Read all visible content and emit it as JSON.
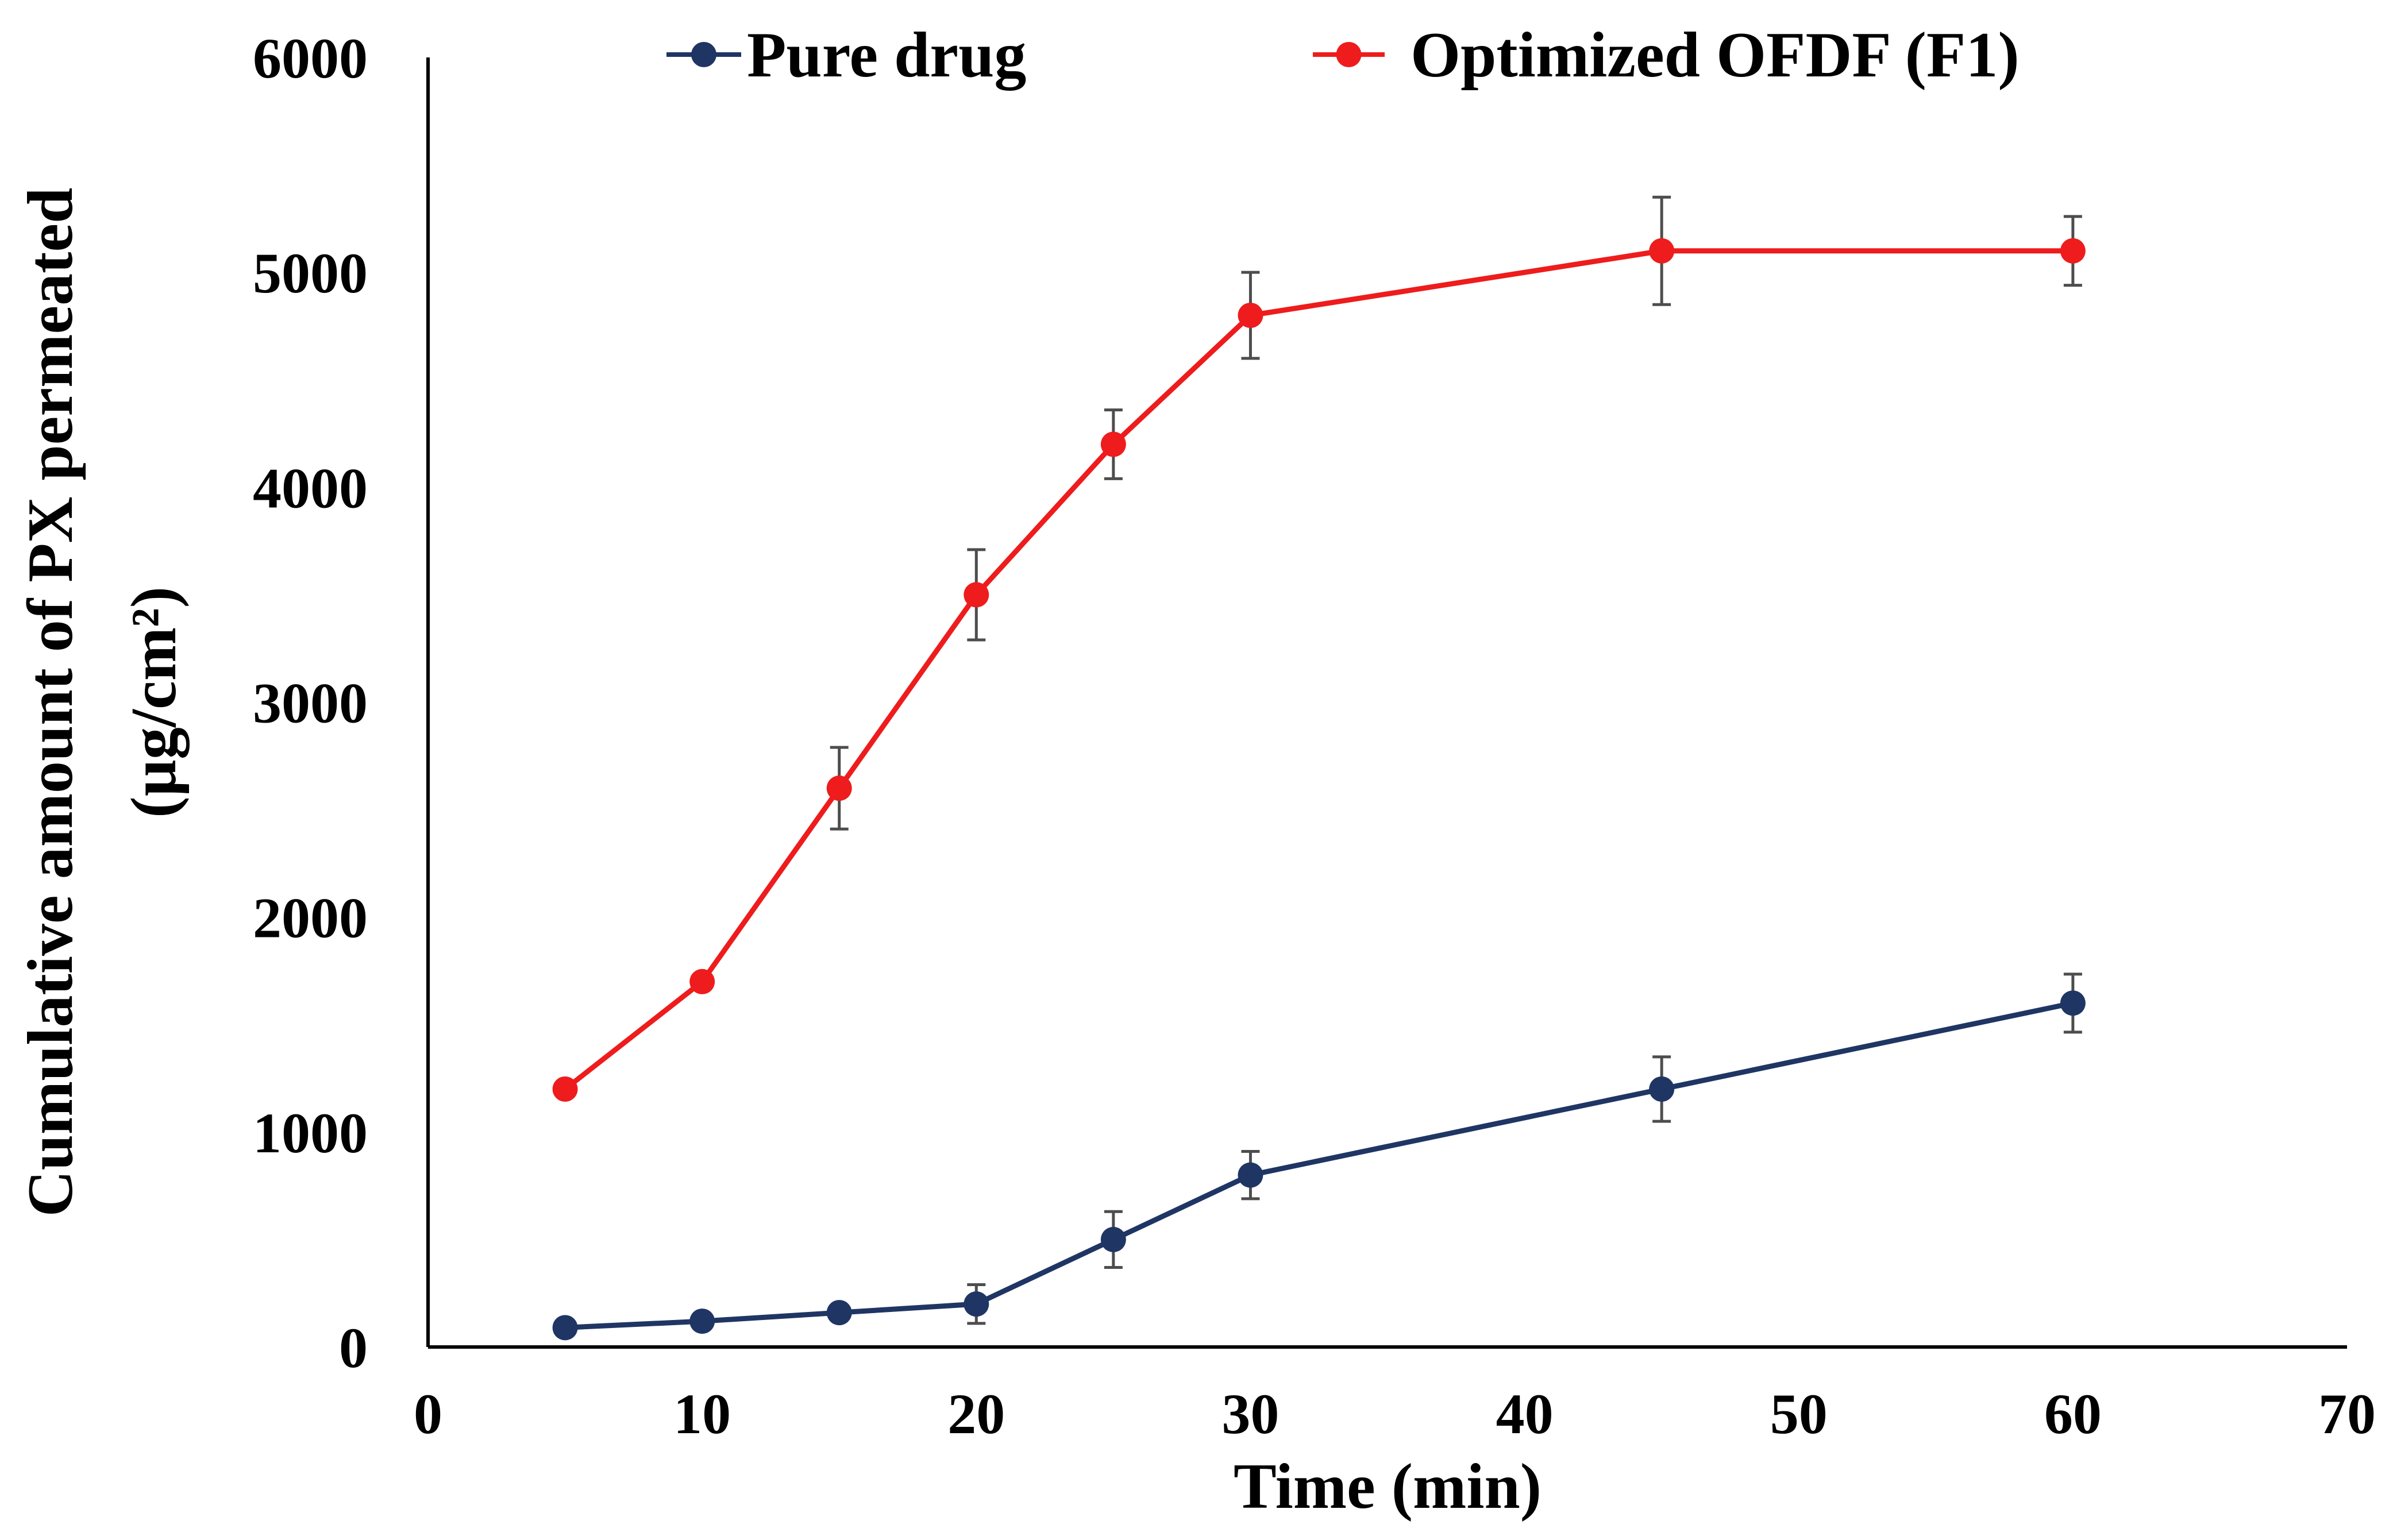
{
  "chart_data": {
    "type": "line",
    "title": "",
    "xlabel": "Time (min)",
    "ylabel_line1": "Cumulative amount of PX permeated",
    "ylabel_line2": "(µg/cm²)",
    "xlim": [
      0,
      70
    ],
    "ylim": [
      0,
      6000
    ],
    "x_ticks": [
      0,
      10,
      20,
      30,
      40,
      50,
      60,
      70
    ],
    "y_ticks": [
      0,
      1000,
      2000,
      3000,
      4000,
      5000,
      6000
    ],
    "x_tick_labels": [
      "0",
      "10",
      "20",
      "30",
      "40",
      "50",
      "60",
      "70"
    ],
    "y_tick_labels": [
      "0",
      "1000",
      "2000",
      "3000",
      "4000",
      "5000",
      "6000"
    ],
    "grid": false,
    "legend_position": "top",
    "x": [
      5,
      10,
      15,
      20,
      25,
      30,
      45,
      60
    ],
    "series": [
      {
        "name": "Pure drug",
        "color": "#1f3564",
        "values": [
          90,
          120,
          160,
          200,
          500,
          800,
          1200,
          1600
        ],
        "errors": [
          0,
          0,
          0,
          90,
          130,
          110,
          150,
          135
        ]
      },
      {
        "name": "Optimized OFDF (F1)",
        "color": "#ee1c1c",
        "values": [
          1200,
          1700,
          2600,
          3500,
          4200,
          4800,
          5100,
          5100
        ],
        "errors": [
          0,
          0,
          190,
          210,
          160,
          200,
          250,
          160
        ]
      }
    ]
  }
}
